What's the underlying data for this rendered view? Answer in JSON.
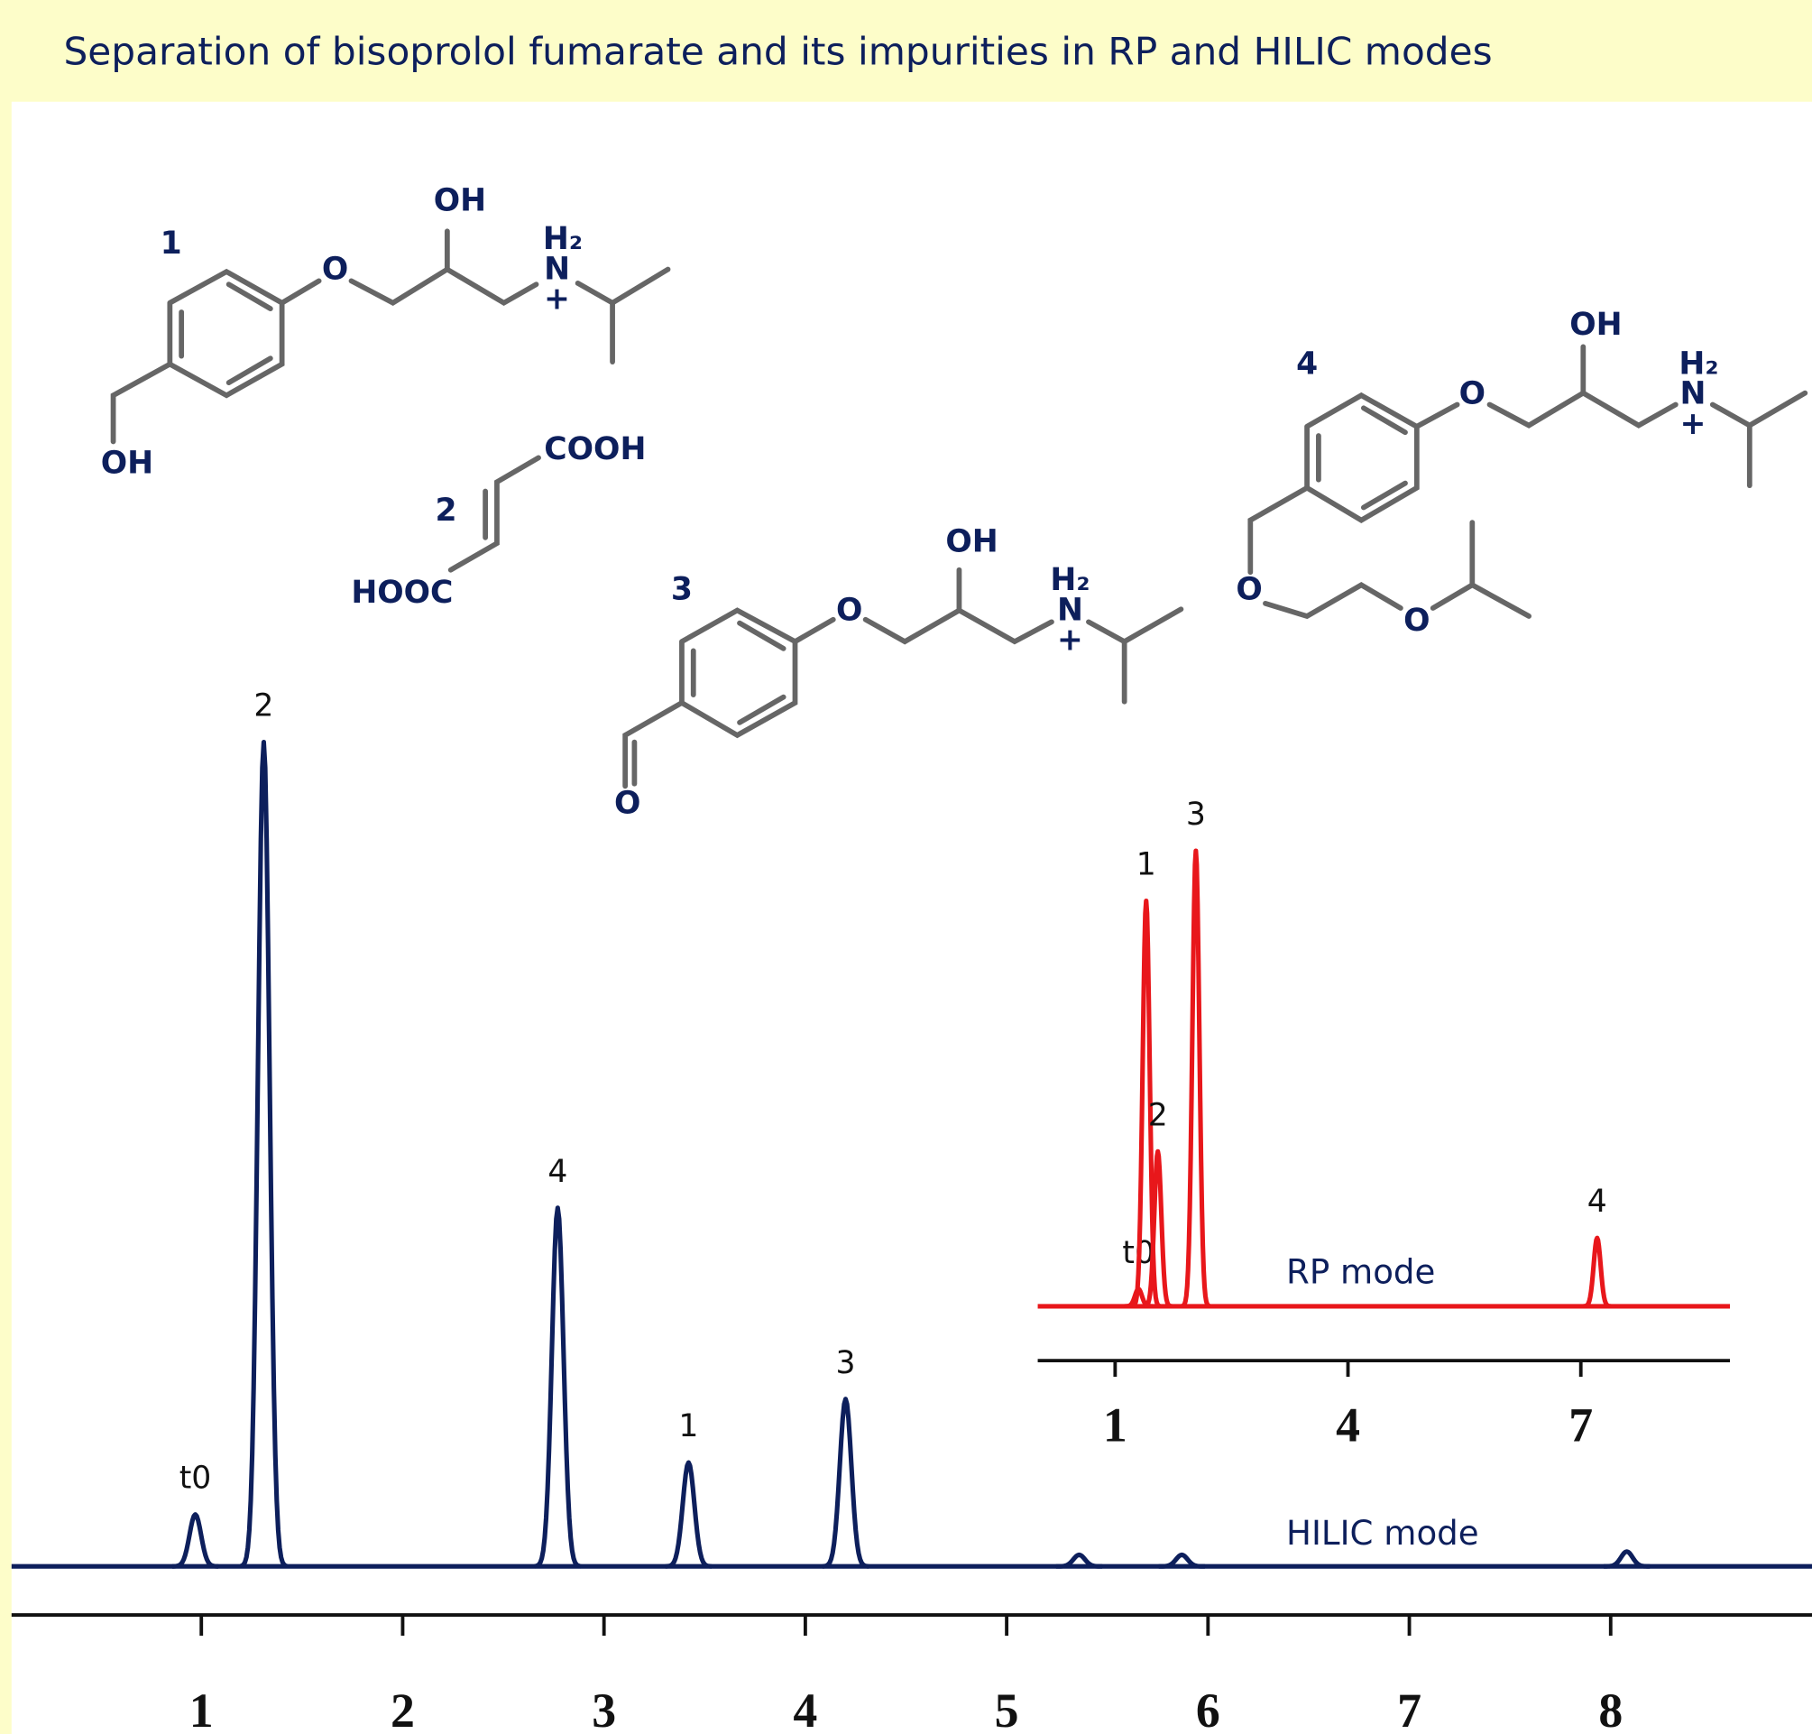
{
  "title": "Separation of bisoprolol fumarate and its impurities in RP and HILIC modes",
  "structures": [
    {
      "label": "1",
      "atoms": [
        "OH",
        "H₂",
        "N",
        "+",
        "O",
        "OH"
      ]
    },
    {
      "label": "2",
      "atoms": [
        "COOH",
        "HOOC"
      ]
    },
    {
      "label": "3",
      "atoms": [
        "OH",
        "H₂",
        "N",
        "+",
        "O",
        "O"
      ]
    },
    {
      "label": "4",
      "atoms": [
        "OH",
        "H₂",
        "N",
        "+",
        "O",
        "O",
        "O"
      ]
    }
  ],
  "chart_data": [
    {
      "type": "chromatogram",
      "series": [
        {
          "name": "HILIC mode",
          "color": "#0d1f5c",
          "x": [
            0.97,
            1.31,
            2.77,
            3.42,
            4.2,
            5.36,
            5.87,
            8.08
          ],
          "values": [
            6.3,
            100,
            43.5,
            12.6,
            20.3,
            1.4,
            1.4,
            1.8
          ],
          "peak_labels": [
            "t0",
            "2",
            "4",
            "1",
            "3",
            null,
            null,
            null
          ]
        }
      ],
      "xlim": [
        0,
        9
      ],
      "xticks": [
        1,
        2,
        3,
        4,
        5,
        6,
        7,
        8
      ],
      "ylim": [
        0,
        100
      ]
    },
    {
      "type": "chromatogram",
      "series": [
        {
          "name": "RP mode",
          "color": "#e8171b",
          "x": [
            1.3,
            1.4,
            1.55,
            2.04,
            7.21
          ],
          "values": [
            3.8,
            89,
            34,
            100,
            15
          ],
          "peak_labels": [
            "t0",
            "1",
            "2",
            "3",
            "4"
          ]
        }
      ],
      "xlim": [
        0,
        9
      ],
      "xticks": [
        1,
        4,
        7
      ],
      "ylim": [
        0,
        100
      ]
    }
  ]
}
